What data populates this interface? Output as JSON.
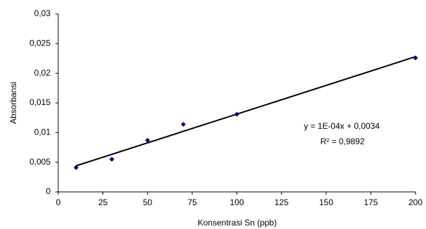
{
  "chart_data": {
    "type": "scatter",
    "x_label": "Konsentrasi Sn (ppb)",
    "y_label": "Absorbansi",
    "x": [
      10,
      30,
      50,
      70,
      100,
      200
    ],
    "values": [
      0.0041,
      0.0055,
      0.0087,
      0.0114,
      0.0131,
      0.0226
    ],
    "color": "#000080",
    "trendline": {
      "x": [
        10,
        200
      ],
      "values": [
        0.0044,
        0.0228
      ],
      "color": "#000000"
    },
    "annotations": [
      "y = 1E-04x + 0,0034",
      "R² = 0,9892"
    ],
    "xlim": [
      0,
      200
    ],
    "xticks": [
      0,
      25,
      50,
      75,
      100,
      125,
      150,
      175,
      200
    ],
    "ylim": [
      0,
      0.03
    ],
    "yticks": [
      0,
      {
        "value": 0.005,
        "label": "0,005"
      },
      {
        "value": 0.01,
        "label": "0,01"
      },
      {
        "value": 0.015,
        "label": "0,015"
      },
      {
        "value": 0.02,
        "label": "0,02"
      },
      {
        "value": 0.025,
        "label": "0,025"
      },
      {
        "value": 0.03,
        "label": "0,03"
      }
    ],
    "grid": false
  }
}
